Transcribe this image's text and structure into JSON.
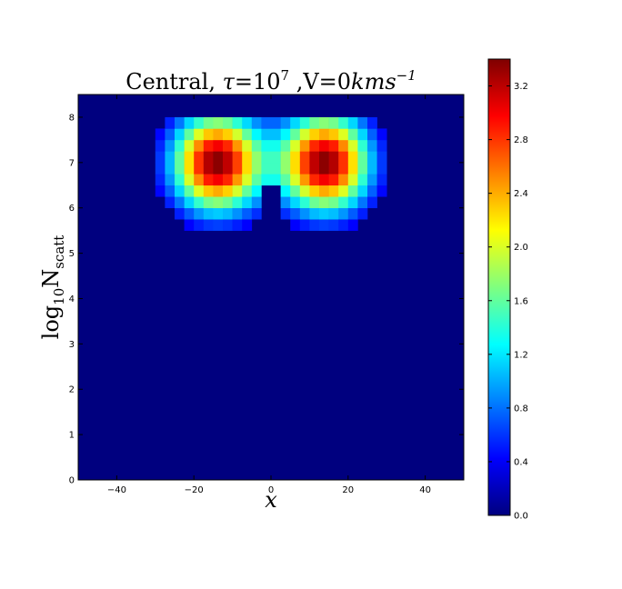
{
  "chart_data": {
    "type": "heatmap",
    "title": {
      "prefix": "Central, ",
      "tau_symbol": "τ",
      "tau_eq": "=10",
      "tau_exp": "7",
      "v_part": " ,V=0",
      "units": "kms",
      "units_exp": "−1"
    },
    "xlabel": "x",
    "ylabel": {
      "log": "log",
      "sub_base": "10",
      "N": "N",
      "sub": "scatt"
    },
    "xlim": [
      -50,
      50
    ],
    "ylim": [
      0,
      8.5
    ],
    "xticks": [
      -40,
      -20,
      0,
      20,
      40
    ],
    "xtick_labels": [
      "−40",
      "−20",
      "0",
      "20",
      "40"
    ],
    "yticks": [
      0,
      1,
      2,
      3,
      4,
      5,
      6,
      7,
      8
    ],
    "ytick_labels": [
      "0",
      "1",
      "2",
      "3",
      "4",
      "5",
      "6",
      "7",
      "8"
    ],
    "colormap": "jet",
    "background_value": 0.0,
    "colorbar": {
      "vmin": 0.0,
      "vmax": 3.4,
      "ticks": [
        0.0,
        0.4,
        0.8,
        1.2,
        1.6,
        2.0,
        2.4,
        2.8,
        3.2
      ],
      "tick_labels": [
        "0.0",
        "0.4",
        "0.8",
        "1.2",
        "1.6",
        "2.0",
        "2.4",
        "2.8",
        "3.2"
      ]
    },
    "bins": {
      "x_start": -50,
      "x_step": 2.5,
      "nx": 40,
      "y_start": 0,
      "y_step": 0.25,
      "ny": 34
    },
    "grid": false,
    "blobs": [
      {
        "xc": -14,
        "yc": 7.0,
        "sx": 8.0,
        "sy": 0.75,
        "amp": 3.4
      },
      {
        "xc": 14,
        "yc": 7.0,
        "sx": 8.0,
        "sy": 0.75,
        "amp": 3.4
      }
    ],
    "peak_value": 3.4
  }
}
